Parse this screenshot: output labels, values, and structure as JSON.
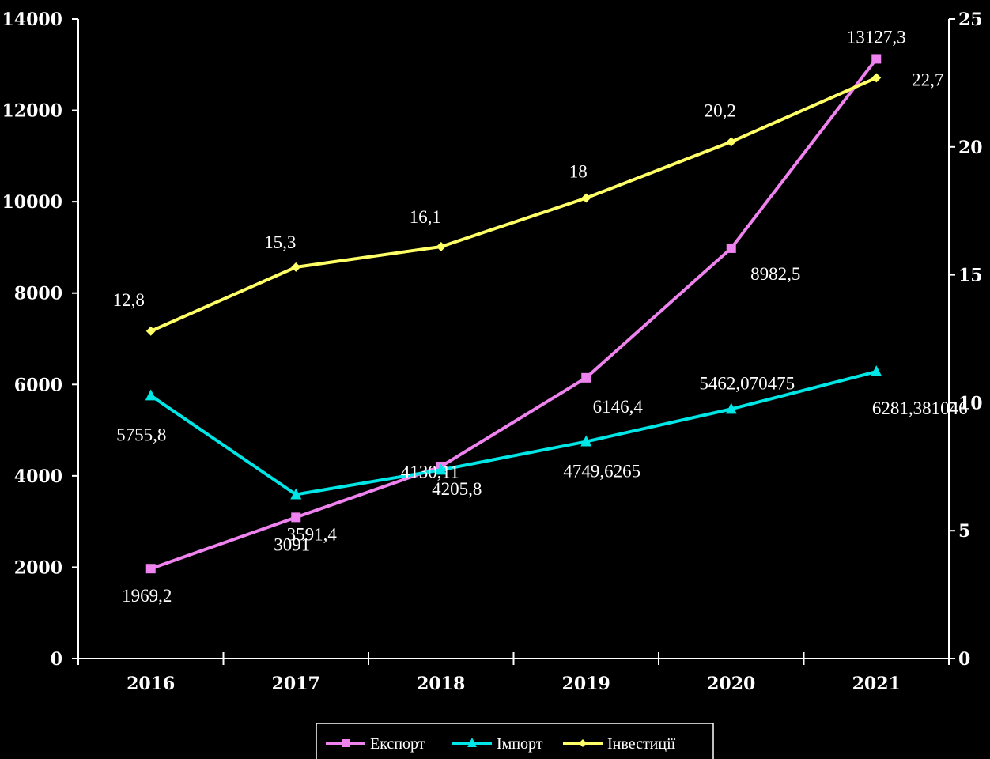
{
  "chart_data": {
    "type": "line",
    "categories": [
      "2016",
      "2017",
      "2018",
      "2019",
      "2020",
      "2021"
    ],
    "y_left": {
      "min": 0,
      "max": 14000,
      "ticks": [
        "0",
        "2000",
        "4000",
        "6000",
        "8000",
        "10000",
        "12000",
        "14000"
      ]
    },
    "y_right": {
      "min": 0,
      "max": 25,
      "ticks": [
        "0",
        "5",
        "10",
        "15",
        "20",
        "25"
      ]
    },
    "series": [
      {
        "name": "Експорт",
        "axis": "left",
        "color": "#ee82ee",
        "marker": "square",
        "values": [
          1969.2,
          3091,
          4205.8,
          6146.4,
          8982.5,
          13127.3
        ],
        "labels": [
          "1969,2",
          "3091",
          "4205,8",
          "6146,4",
          "8982,5",
          "13127,3"
        ]
      },
      {
        "name": "Імпорт",
        "axis": "left",
        "color": "#00e5e5",
        "marker": "triangle",
        "values": [
          5755.8,
          3591.4,
          4130.11,
          4749.6265,
          5462.070475,
          6281.381046
        ],
        "labels": [
          "5755,8",
          "3591,4",
          "4130,11",
          "4749,6265",
          "5462,070475",
          "6281,381046"
        ]
      },
      {
        "name": "Інвестиції",
        "axis": "right",
        "color": "#ffff66",
        "marker": "diamond",
        "values": [
          12.8,
          15.3,
          16.1,
          18,
          20.2,
          22.7
        ],
        "labels": [
          "12,8",
          "15,3",
          "16,1",
          "18",
          "20,2",
          "22,7"
        ]
      }
    ],
    "legend_position": "bottom"
  }
}
